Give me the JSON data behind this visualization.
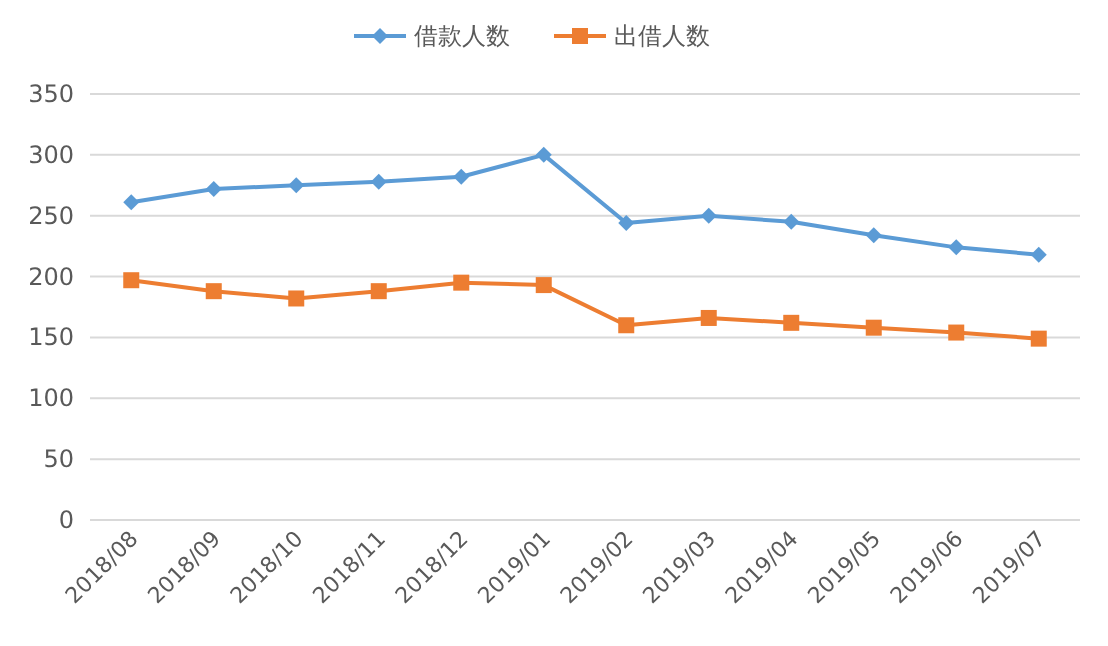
{
  "chart_data": {
    "type": "line",
    "categories": [
      "2018/08",
      "2018/09",
      "2018/10",
      "2018/11",
      "2018/12",
      "2019/01",
      "2019/02",
      "2019/03",
      "2019/04",
      "2019/05",
      "2019/06",
      "2019/07"
    ],
    "series": [
      {
        "name": "借款人数",
        "color": "#5b9bd5",
        "marker": "diamond",
        "values": [
          261,
          272,
          275,
          278,
          282,
          300,
          244,
          250,
          245,
          234,
          224,
          218
        ]
      },
      {
        "name": "出借人数",
        "color": "#ed7d31",
        "marker": "square",
        "values": [
          197,
          188,
          182,
          188,
          195,
          193,
          160,
          166,
          162,
          158,
          154,
          149
        ]
      }
    ],
    "ylim": [
      0,
      350
    ],
    "yticks": [
      0,
      50,
      100,
      150,
      200,
      250,
      300,
      350
    ],
    "grid": "y",
    "legend": "top",
    "line_style": "solid"
  }
}
